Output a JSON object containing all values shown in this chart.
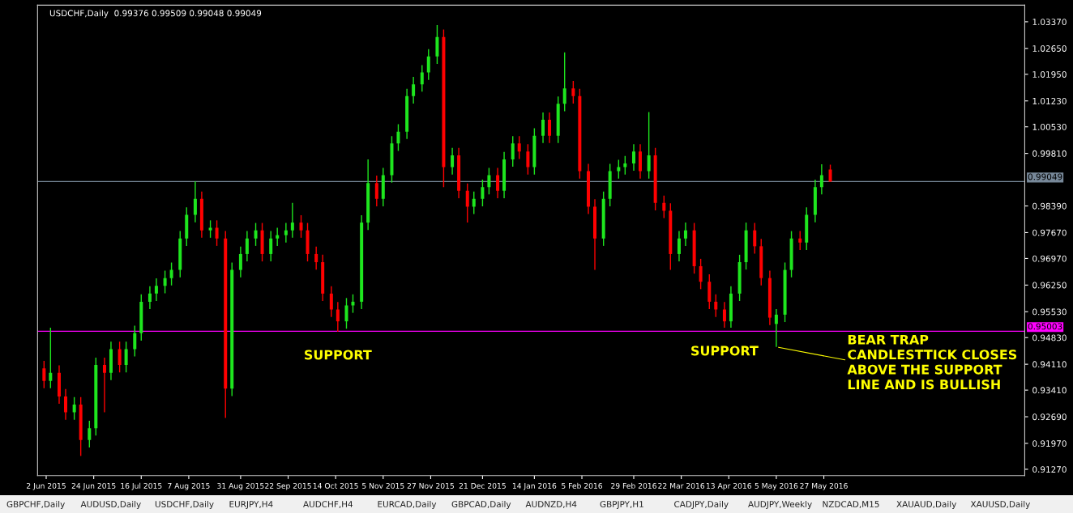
{
  "chart_data": {
    "type": "candlestick",
    "title": "USDCHF,Daily  0.99376 0.99509 0.99048 0.99049",
    "x": [
      "2015-06-01",
      "2015-06-04",
      "2015-06-08",
      "2015-06-11",
      "2015-06-15",
      "2015-06-18",
      "2015-06-22",
      "2015-06-25",
      "2015-06-29",
      "2015-07-02",
      "2015-07-06",
      "2015-07-09",
      "2015-07-13",
      "2015-07-16",
      "2015-07-20",
      "2015-07-23",
      "2015-07-27",
      "2015-07-30",
      "2015-08-03",
      "2015-08-06",
      "2015-08-10",
      "2015-08-13",
      "2015-08-17",
      "2015-08-20",
      "2015-08-24",
      "2015-08-27",
      "2015-08-31",
      "2015-09-03",
      "2015-09-07",
      "2015-09-10",
      "2015-09-14",
      "2015-09-17",
      "2015-09-21",
      "2015-09-24",
      "2015-09-28",
      "2015-10-01",
      "2015-10-05",
      "2015-10-08",
      "2015-10-12",
      "2015-10-15",
      "2015-10-19",
      "2015-10-22",
      "2015-10-26",
      "2015-10-29",
      "2015-11-02",
      "2015-11-05",
      "2015-11-09",
      "2015-11-12",
      "2015-11-16",
      "2015-11-19",
      "2015-11-23",
      "2015-11-26",
      "2015-11-30",
      "2015-12-03",
      "2015-12-07",
      "2015-12-10",
      "2015-12-14",
      "2015-12-17",
      "2015-12-21",
      "2015-12-24",
      "2015-12-28",
      "2015-12-31",
      "2016-01-04",
      "2016-01-07",
      "2016-01-11",
      "2016-01-14",
      "2016-01-18",
      "2016-01-21",
      "2016-01-25",
      "2016-01-28",
      "2016-02-01",
      "2016-02-04",
      "2016-02-08",
      "2016-02-11",
      "2016-02-15",
      "2016-02-18",
      "2016-02-22",
      "2016-02-25",
      "2016-02-29",
      "2016-03-03",
      "2016-03-07",
      "2016-03-10",
      "2016-03-14",
      "2016-03-17",
      "2016-03-21",
      "2016-03-24",
      "2016-03-28",
      "2016-03-31",
      "2016-04-04",
      "2016-04-07",
      "2016-04-11",
      "2016-04-14",
      "2016-04-18",
      "2016-04-21",
      "2016-04-25",
      "2016-04-28",
      "2016-05-02",
      "2016-05-05",
      "2016-05-09",
      "2016-05-12",
      "2016-05-16",
      "2016-05-19",
      "2016-05-23",
      "2016-05-26",
      "2016-05-30"
    ],
    "ohlc": [
      [
        0.94,
        0.942,
        0.9346,
        0.9366
      ],
      [
        0.9366,
        0.951,
        0.9346,
        0.9388
      ],
      [
        0.9388,
        0.9408,
        0.9304,
        0.9324
      ],
      [
        0.9324,
        0.9344,
        0.9261,
        0.9281
      ],
      [
        0.9281,
        0.9322,
        0.9261,
        0.9302
      ],
      [
        0.9302,
        0.9322,
        0.9163,
        0.9206
      ],
      [
        0.9206,
        0.9258,
        0.9186,
        0.9238
      ],
      [
        0.9238,
        0.9429,
        0.9218,
        0.9409
      ],
      [
        0.9409,
        0.9429,
        0.9281,
        0.9388
      ],
      [
        0.9388,
        0.9472,
        0.9368,
        0.9452
      ],
      [
        0.9452,
        0.9472,
        0.9389,
        0.9409
      ],
      [
        0.9409,
        0.9472,
        0.9389,
        0.9452
      ],
      [
        0.9452,
        0.9515,
        0.9432,
        0.9495
      ],
      [
        0.9495,
        0.96,
        0.9475,
        0.958
      ],
      [
        0.958,
        0.9622,
        0.956,
        0.9602
      ],
      [
        0.9602,
        0.9643,
        0.9582,
        0.9623
      ],
      [
        0.9623,
        0.9664,
        0.9603,
        0.9644
      ],
      [
        0.9644,
        0.9686,
        0.9624,
        0.9666
      ],
      [
        0.9666,
        0.9771,
        0.9646,
        0.9751
      ],
      [
        0.9751,
        0.9835,
        0.9731,
        0.9815
      ],
      [
        0.9815,
        0.9905,
        0.9795,
        0.9858
      ],
      [
        0.9858,
        0.9878,
        0.9753,
        0.9773
      ],
      [
        0.9773,
        0.98,
        0.9753,
        0.978
      ],
      [
        0.978,
        0.98,
        0.9731,
        0.9751
      ],
      [
        0.9751,
        0.9771,
        0.9266,
        0.9345
      ],
      [
        0.9345,
        0.9686,
        0.9325,
        0.9666
      ],
      [
        0.9666,
        0.9729,
        0.9646,
        0.9709
      ],
      [
        0.9709,
        0.9771,
        0.9689,
        0.9751
      ],
      [
        0.9751,
        0.9793,
        0.9731,
        0.9773
      ],
      [
        0.9773,
        0.9793,
        0.9689,
        0.9709
      ],
      [
        0.9709,
        0.9771,
        0.9689,
        0.9751
      ],
      [
        0.9751,
        0.978,
        0.9731,
        0.976
      ],
      [
        0.976,
        0.9793,
        0.974,
        0.9773
      ],
      [
        0.9773,
        0.9847,
        0.9753,
        0.9794
      ],
      [
        0.9794,
        0.9814,
        0.9753,
        0.9773
      ],
      [
        0.9773,
        0.9793,
        0.9689,
        0.9709
      ],
      [
        0.9709,
        0.9729,
        0.9667,
        0.9687
      ],
      [
        0.9687,
        0.9707,
        0.9582,
        0.9602
      ],
      [
        0.9602,
        0.9622,
        0.9539,
        0.9559
      ],
      [
        0.9559,
        0.9579,
        0.9499,
        0.9527
      ],
      [
        0.9527,
        0.959,
        0.9507,
        0.957
      ],
      [
        0.957,
        0.96,
        0.955,
        0.958
      ],
      [
        0.958,
        0.9814,
        0.956,
        0.9794
      ],
      [
        0.9794,
        0.9965,
        0.9774,
        0.9901
      ],
      [
        0.9901,
        0.9921,
        0.9838,
        0.9858
      ],
      [
        0.9858,
        0.9942,
        0.9838,
        0.9922
      ],
      [
        0.9922,
        1.0028,
        0.9902,
        1.0008
      ],
      [
        1.0008,
        1.006,
        0.9988,
        1.004
      ],
      [
        1.004,
        1.0156,
        1.002,
        1.0136
      ],
      [
        1.0136,
        1.0188,
        1.0116,
        1.0168
      ],
      [
        1.0168,
        1.022,
        1.0148,
        1.02
      ],
      [
        1.02,
        1.0263,
        1.018,
        1.0243
      ],
      [
        1.0243,
        1.0328,
        1.0223,
        1.0296
      ],
      [
        1.0296,
        1.0316,
        0.989,
        0.9944
      ],
      [
        0.9944,
        0.9996,
        0.9924,
        0.9976
      ],
      [
        0.9976,
        0.9996,
        0.986,
        0.988
      ],
      [
        0.988,
        0.99,
        0.9794,
        0.9837
      ],
      [
        0.9837,
        0.9878,
        0.9817,
        0.9858
      ],
      [
        0.9858,
        0.991,
        0.9838,
        0.989
      ],
      [
        0.989,
        0.9942,
        0.987,
        0.9922
      ],
      [
        0.9922,
        0.9942,
        0.986,
        0.988
      ],
      [
        0.988,
        0.9985,
        0.986,
        0.9965
      ],
      [
        0.9965,
        1.0028,
        0.9945,
        1.0008
      ],
      [
        1.0008,
        1.0028,
        0.9966,
        0.9986
      ],
      [
        0.9986,
        1.0006,
        0.9924,
        0.9944
      ],
      [
        0.9944,
        1.0049,
        0.9924,
        1.0029
      ],
      [
        1.0029,
        1.0092,
        1.0009,
        1.0072
      ],
      [
        1.0072,
        1.0092,
        1.0009,
        1.0029
      ],
      [
        1.0029,
        1.0135,
        1.0009,
        1.0115
      ],
      [
        1.0115,
        1.0254,
        1.0095,
        1.0157
      ],
      [
        1.0157,
        1.0177,
        1.0116,
        1.0136
      ],
      [
        1.0136,
        1.0156,
        0.9913,
        0.9933
      ],
      [
        0.9933,
        0.9953,
        0.9817,
        0.9837
      ],
      [
        0.9837,
        0.9857,
        0.9666,
        0.9751
      ],
      [
        0.9751,
        0.9878,
        0.9731,
        0.9858
      ],
      [
        0.9858,
        0.9953,
        0.9838,
        0.9933
      ],
      [
        0.9933,
        0.9964,
        0.9913,
        0.9944
      ],
      [
        0.9944,
        0.9974,
        0.9924,
        0.9954
      ],
      [
        0.9954,
        1.0006,
        0.9934,
        0.9986
      ],
      [
        0.9986,
        1.0006,
        0.9913,
        0.9933
      ],
      [
        0.9933,
        1.0093,
        0.9913,
        0.9976
      ],
      [
        0.9976,
        0.9996,
        0.9827,
        0.9847
      ],
      [
        0.9847,
        0.9867,
        0.9806,
        0.9826
      ],
      [
        0.9826,
        0.9846,
        0.9666,
        0.9709
      ],
      [
        0.9709,
        0.9771,
        0.9689,
        0.9751
      ],
      [
        0.9751,
        0.9794,
        0.9731,
        0.9773
      ],
      [
        0.9773,
        0.9793,
        0.9656,
        0.9676
      ],
      [
        0.9676,
        0.9696,
        0.9614,
        0.9634
      ],
      [
        0.9634,
        0.9654,
        0.956,
        0.958
      ],
      [
        0.958,
        0.96,
        0.9539,
        0.9559
      ],
      [
        0.9559,
        0.9579,
        0.951,
        0.9527
      ],
      [
        0.9527,
        0.9622,
        0.951,
        0.9602
      ],
      [
        0.9602,
        0.9707,
        0.9582,
        0.9687
      ],
      [
        0.9687,
        0.9794,
        0.9667,
        0.9773
      ],
      [
        0.9773,
        0.9793,
        0.971,
        0.973
      ],
      [
        0.973,
        0.975,
        0.9624,
        0.9644
      ],
      [
        0.9644,
        0.9664,
        0.9517,
        0.9537
      ],
      [
        0.952,
        0.956,
        0.9458,
        0.9545
      ],
      [
        0.9545,
        0.9686,
        0.9525,
        0.9666
      ],
      [
        0.9666,
        0.9771,
        0.9646,
        0.9751
      ],
      [
        0.9751,
        0.9771,
        0.972,
        0.974
      ],
      [
        0.974,
        0.9835,
        0.972,
        0.9815
      ],
      [
        0.9815,
        0.991,
        0.9795,
        0.989
      ],
      [
        0.989,
        0.9952,
        0.987,
        0.9922
      ],
      [
        0.99376,
        0.99509,
        0.99048,
        0.99049
      ]
    ],
    "colors": [
      "#ff0000",
      "#1ee61e",
      "#ff0000",
      "#ff0000",
      "#1ee61e",
      "#ff0000",
      "#1ee61e",
      "#1ee61e",
      "#ff0000",
      "#1ee61e",
      "#ff0000",
      "#1ee61e",
      "#1ee61e",
      "#1ee61e",
      "#1ee61e",
      "#1ee61e",
      "#1ee61e",
      "#1ee61e",
      "#1ee61e",
      "#1ee61e",
      "#1ee61e",
      "#ff0000",
      "#1ee61e",
      "#ff0000",
      "#ff0000",
      "#1ee61e",
      "#1ee61e",
      "#1ee61e",
      "#1ee61e",
      "#ff0000",
      "#1ee61e",
      "#1ee61e",
      "#1ee61e",
      "#1ee61e",
      "#ff0000",
      "#ff0000",
      "#ff0000",
      "#ff0000",
      "#ff0000",
      "#ff0000",
      "#1ee61e",
      "#1ee61e",
      "#1ee61e",
      "#1ee61e",
      "#ff0000",
      "#1ee61e",
      "#1ee61e",
      "#1ee61e",
      "#1ee61e",
      "#1ee61e",
      "#1ee61e",
      "#1ee61e",
      "#1ee61e",
      "#ff0000",
      "#1ee61e",
      "#ff0000",
      "#ff0000",
      "#1ee61e",
      "#1ee61e",
      "#1ee61e",
      "#ff0000",
      "#1ee61e",
      "#1ee61e",
      "#ff0000",
      "#ff0000",
      "#1ee61e",
      "#1ee61e",
      "#ff0000",
      "#1ee61e",
      "#1ee61e",
      "#ff0000",
      "#ff0000",
      "#ff0000",
      "#ff0000",
      "#1ee61e",
      "#1ee61e",
      "#1ee61e",
      "#1ee61e",
      "#1ee61e",
      "#ff0000",
      "#1ee61e",
      "#ff0000",
      "#ff0000",
      "#ff0000",
      "#1ee61e",
      "#1ee61e",
      "#ff0000",
      "#ff0000",
      "#ff0000",
      "#ff0000",
      "#ff0000",
      "#1ee61e",
      "#1ee61e",
      "#1ee61e",
      "#ff0000",
      "#ff0000",
      "#ff0000",
      "#1ee61e",
      "#1ee61e",
      "#1ee61e",
      "#ff0000",
      "#1ee61e",
      "#1ee61e",
      "#1ee61e",
      "#ff0000"
    ],
    "xlim": [
      "2015-05-29",
      "2016-08-28"
    ],
    "xticks": [
      {
        "value": "2015-06-02",
        "label": "2 Jun 2015"
      },
      {
        "value": "2015-06-24",
        "label": "24 Jun 2015"
      },
      {
        "value": "2015-07-16",
        "label": "16 Jul 2015"
      },
      {
        "value": "2015-08-07",
        "label": "7 Aug 2015"
      },
      {
        "value": "2015-08-31",
        "label": "31 Aug 2015"
      },
      {
        "value": "2015-09-22",
        "label": "22 Sep 2015"
      },
      {
        "value": "2015-10-14",
        "label": "14 Oct 2015"
      },
      {
        "value": "2015-11-05",
        "label": "5 Nov 2015"
      },
      {
        "value": "2015-11-27",
        "label": "27 Nov 2015"
      },
      {
        "value": "2015-12-21",
        "label": "21 Dec 2015"
      },
      {
        "value": "2016-01-14",
        "label": "14 Jan 2016"
      },
      {
        "value": "2016-02-05",
        "label": "5 Feb 2016"
      },
      {
        "value": "2016-02-29",
        "label": "29 Feb 2016"
      },
      {
        "value": "2016-03-22",
        "label": "22 Mar 2016"
      },
      {
        "value": "2016-04-13",
        "label": "13 Apr 2016"
      },
      {
        "value": "2016-05-05",
        "label": "5 May 2016"
      },
      {
        "value": "2016-05-27",
        "label": "27 May 2016"
      }
    ],
    "ylim": [
      0.911,
      1.0382
    ],
    "yticks": [
      {
        "value": 1.0337,
        "label": "1.03370"
      },
      {
        "value": 1.0265,
        "label": "1.02650"
      },
      {
        "value": 1.0195,
        "label": "1.01950"
      },
      {
        "value": 1.0123,
        "label": "1.01230"
      },
      {
        "value": 1.0053,
        "label": "1.00530"
      },
      {
        "value": 0.9981,
        "label": "0.99810"
      },
      {
        "value": 0.9839,
        "label": "0.98390"
      },
      {
        "value": 0.9767,
        "label": "0.97670"
      },
      {
        "value": 0.9697,
        "label": "0.96970"
      },
      {
        "value": 0.9625,
        "label": "0.96250"
      },
      {
        "value": 0.9553,
        "label": "0.95530"
      },
      {
        "value": 0.9483,
        "label": "0.94830"
      },
      {
        "value": 0.9411,
        "label": "0.94110"
      },
      {
        "value": 0.9341,
        "label": "0.93410"
      },
      {
        "value": 0.9269,
        "label": "0.92690"
      },
      {
        "value": 0.9197,
        "label": "0.91970"
      },
      {
        "value": 0.9127,
        "label": "0.91270"
      }
    ],
    "ref_lines": [
      {
        "axis": "y",
        "value": 0.99049,
        "label": "0.99049",
        "color": "#778899"
      },
      {
        "axis": "y",
        "value": 0.95003,
        "label": "0.95003",
        "color": "#ff00ff"
      }
    ],
    "annotations": [
      {
        "text": "SUPPORT",
        "x": "2015-10-15",
        "y": 0.9499
      },
      {
        "text": "SUPPORT",
        "x": "2016-04-11",
        "y": 0.951
      },
      {
        "text": "BEAR TRAP\nCANDLESTTICK CLOSES\nABOVE THE SUPPORT\nLINE AND IS BULLISH",
        "x": "2016-05-05",
        "y": 0.9458
      },
      "GBPCHF,Daily",
      "AUDUSD,Daily",
      "USDCHF,Daily",
      "EURJPY,H4",
      "AUDCHF,H4",
      "EURCAD,Daily",
      "GBPCAD,Daily",
      "AUDNZD,H4",
      "GBPJPY,H1",
      "CADJPY,Daily",
      "AUDJPY,Weekly",
      "NZDCAD,M15",
      "XAUAUD,Daily",
      "XAUUSD,Daily"
    ]
  }
}
